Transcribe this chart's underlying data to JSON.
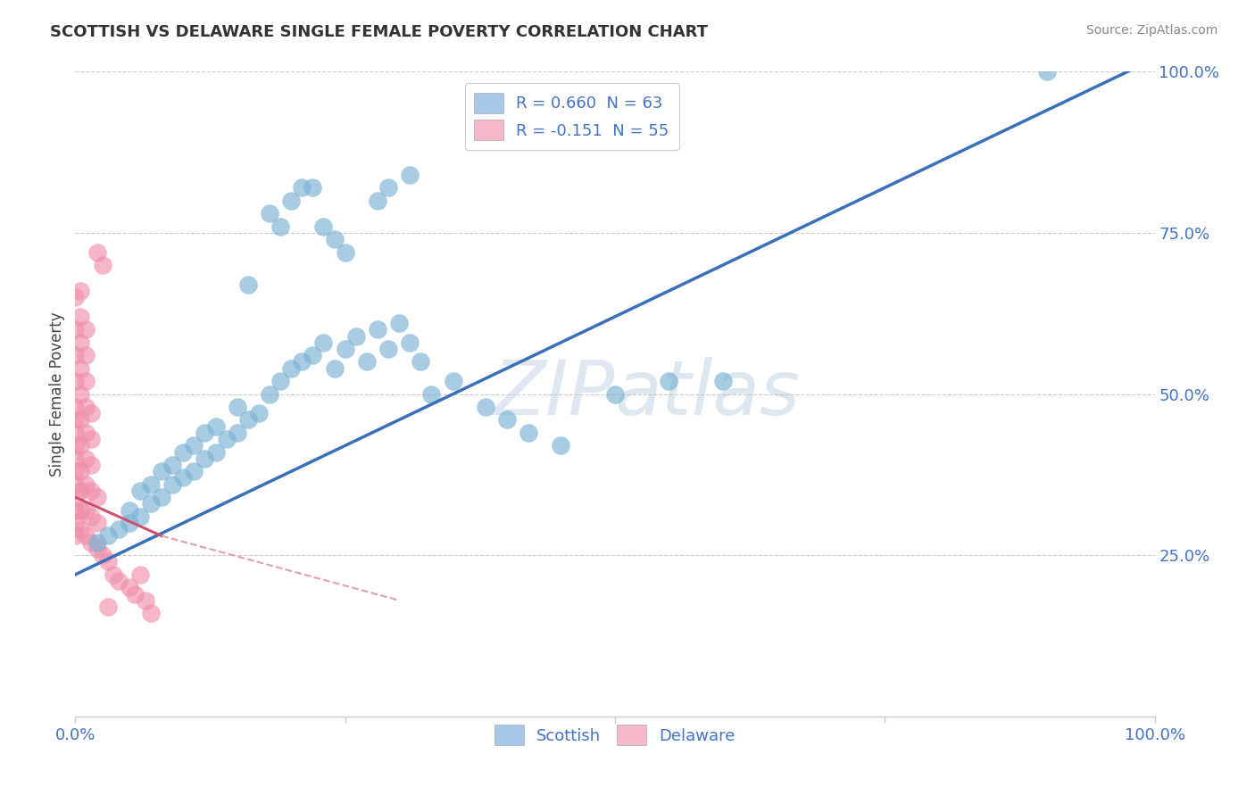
{
  "title": "SCOTTISH VS DELAWARE SINGLE FEMALE POVERTY CORRELATION CHART",
  "source": "Source: ZipAtlas.com",
  "ylabel": "Single Female Poverty",
  "scottish_color": "#7ab3d4",
  "delaware_color": "#f090aa",
  "trendline_scottish_color": "#3a6fba",
  "trendline_delaware_color": "#d05070",
  "trendline_delaware_dashed_color": "#e0a0b0",
  "legend_patch_blue": "#a8c8e8",
  "legend_patch_pink": "#f4b8c8",
  "legend_text_color": "#4472c4",
  "watermark_color": "#c8d8ee",
  "axis_label_color": "#4472c4",
  "scottish_points": [
    [
      0.02,
      0.27
    ],
    [
      0.03,
      0.28
    ],
    [
      0.04,
      0.29
    ],
    [
      0.05,
      0.3
    ],
    [
      0.05,
      0.32
    ],
    [
      0.06,
      0.31
    ],
    [
      0.06,
      0.35
    ],
    [
      0.07,
      0.33
    ],
    [
      0.07,
      0.36
    ],
    [
      0.08,
      0.34
    ],
    [
      0.08,
      0.38
    ],
    [
      0.09,
      0.36
    ],
    [
      0.09,
      0.39
    ],
    [
      0.1,
      0.37
    ],
    [
      0.1,
      0.41
    ],
    [
      0.11,
      0.38
    ],
    [
      0.11,
      0.42
    ],
    [
      0.12,
      0.4
    ],
    [
      0.12,
      0.44
    ],
    [
      0.13,
      0.41
    ],
    [
      0.13,
      0.45
    ],
    [
      0.14,
      0.43
    ],
    [
      0.15,
      0.44
    ],
    [
      0.15,
      0.48
    ],
    [
      0.16,
      0.46
    ],
    [
      0.17,
      0.47
    ],
    [
      0.18,
      0.5
    ],
    [
      0.19,
      0.52
    ],
    [
      0.2,
      0.54
    ],
    [
      0.21,
      0.55
    ],
    [
      0.22,
      0.56
    ],
    [
      0.23,
      0.58
    ],
    [
      0.24,
      0.54
    ],
    [
      0.25,
      0.57
    ],
    [
      0.26,
      0.59
    ],
    [
      0.27,
      0.55
    ],
    [
      0.28,
      0.6
    ],
    [
      0.29,
      0.57
    ],
    [
      0.3,
      0.61
    ],
    [
      0.31,
      0.58
    ],
    [
      0.32,
      0.55
    ],
    [
      0.33,
      0.5
    ],
    [
      0.35,
      0.52
    ],
    [
      0.38,
      0.48
    ],
    [
      0.4,
      0.46
    ],
    [
      0.42,
      0.44
    ],
    [
      0.45,
      0.42
    ],
    [
      0.5,
      0.5
    ],
    [
      0.55,
      0.52
    ],
    [
      0.6,
      0.52
    ],
    [
      0.16,
      0.67
    ],
    [
      0.18,
      0.78
    ],
    [
      0.19,
      0.76
    ],
    [
      0.2,
      0.8
    ],
    [
      0.21,
      0.82
    ],
    [
      0.22,
      0.82
    ],
    [
      0.23,
      0.76
    ],
    [
      0.24,
      0.74
    ],
    [
      0.25,
      0.72
    ],
    [
      0.28,
      0.8
    ],
    [
      0.29,
      0.82
    ],
    [
      0.31,
      0.84
    ],
    [
      0.9,
      1.0
    ]
  ],
  "delaware_points": [
    [
      0.0,
      0.28
    ],
    [
      0.0,
      0.3
    ],
    [
      0.0,
      0.32
    ],
    [
      0.0,
      0.34
    ],
    [
      0.0,
      0.36
    ],
    [
      0.0,
      0.38
    ],
    [
      0.0,
      0.4
    ],
    [
      0.0,
      0.42
    ],
    [
      0.0,
      0.44
    ],
    [
      0.0,
      0.46
    ],
    [
      0.0,
      0.48
    ],
    [
      0.0,
      0.52
    ],
    [
      0.0,
      0.56
    ],
    [
      0.0,
      0.6
    ],
    [
      0.0,
      0.65
    ],
    [
      0.005,
      0.29
    ],
    [
      0.005,
      0.32
    ],
    [
      0.005,
      0.35
    ],
    [
      0.005,
      0.38
    ],
    [
      0.005,
      0.42
    ],
    [
      0.005,
      0.46
    ],
    [
      0.005,
      0.5
    ],
    [
      0.005,
      0.54
    ],
    [
      0.005,
      0.58
    ],
    [
      0.005,
      0.62
    ],
    [
      0.005,
      0.66
    ],
    [
      0.01,
      0.28
    ],
    [
      0.01,
      0.32
    ],
    [
      0.01,
      0.36
    ],
    [
      0.01,
      0.4
    ],
    [
      0.01,
      0.44
    ],
    [
      0.01,
      0.48
    ],
    [
      0.01,
      0.52
    ],
    [
      0.01,
      0.56
    ],
    [
      0.01,
      0.6
    ],
    [
      0.015,
      0.27
    ],
    [
      0.015,
      0.31
    ],
    [
      0.015,
      0.35
    ],
    [
      0.015,
      0.39
    ],
    [
      0.015,
      0.43
    ],
    [
      0.015,
      0.47
    ],
    [
      0.02,
      0.26
    ],
    [
      0.02,
      0.3
    ],
    [
      0.02,
      0.34
    ],
    [
      0.025,
      0.25
    ],
    [
      0.03,
      0.24
    ],
    [
      0.035,
      0.22
    ],
    [
      0.04,
      0.21
    ],
    [
      0.05,
      0.2
    ],
    [
      0.055,
      0.19
    ],
    [
      0.06,
      0.22
    ],
    [
      0.065,
      0.18
    ],
    [
      0.07,
      0.16
    ],
    [
      0.02,
      0.72
    ],
    [
      0.025,
      0.7
    ],
    [
      0.03,
      0.17
    ]
  ],
  "scottish_trendline": [
    [
      0.0,
      0.22
    ],
    [
      1.0,
      1.02
    ]
  ],
  "delaware_trendline_solid": [
    [
      0.0,
      0.34
    ],
    [
      0.08,
      0.28
    ]
  ],
  "delaware_trendline_dashed": [
    [
      0.08,
      0.28
    ],
    [
      0.3,
      0.18
    ]
  ]
}
